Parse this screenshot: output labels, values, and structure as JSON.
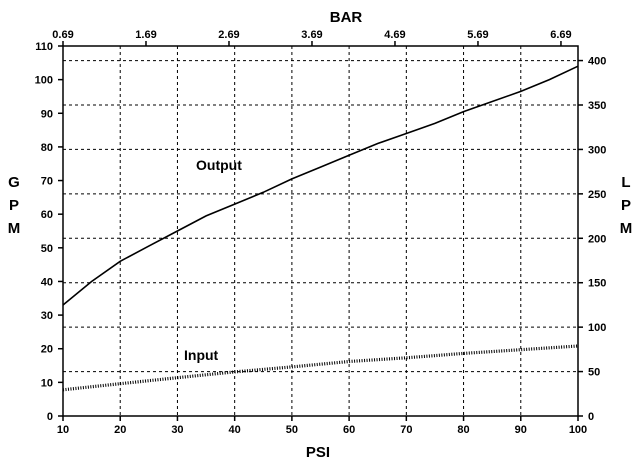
{
  "chart_data": {
    "type": "line",
    "title": "",
    "x_bottom": {
      "label": "PSI",
      "ticks": [
        10,
        20,
        30,
        40,
        50,
        60,
        70,
        80,
        90,
        100
      ],
      "range": [
        10,
        100
      ]
    },
    "x_top": {
      "label": "BAR",
      "ticks": [
        "0.69",
        "1.69",
        "2.69",
        "3.69",
        "4.69",
        "5.69",
        "6.69"
      ]
    },
    "y_left": {
      "label": "GPM",
      "ticks": [
        0,
        10,
        20,
        30,
        40,
        50,
        60,
        70,
        80,
        90,
        100,
        110
      ],
      "range": [
        0,
        110
      ]
    },
    "y_right": {
      "label": "LPM",
      "ticks": [
        0,
        50,
        100,
        150,
        200,
        250,
        300,
        350,
        400
      ]
    },
    "grid": true,
    "series": [
      {
        "name": "Output",
        "style": "solid",
        "x": [
          10,
          15,
          20,
          25,
          30,
          35,
          40,
          45,
          50,
          55,
          60,
          65,
          70,
          75,
          80,
          85,
          90,
          95,
          100
        ],
        "y": [
          33,
          40,
          46,
          50.5,
          55,
          59.5,
          63,
          66.5,
          70.5,
          74,
          77.5,
          81,
          84,
          87,
          90.5,
          93.5,
          96.5,
          100,
          104
        ]
      },
      {
        "name": "Input",
        "style": "dotted",
        "x": [
          10,
          20,
          30,
          40,
          50,
          60,
          70,
          80,
          90,
          100
        ],
        "y": [
          7.8,
          9.6,
          11.4,
          13.1,
          14.6,
          16.2,
          17.3,
          18.6,
          19.7,
          20.8
        ]
      }
    ]
  }
}
